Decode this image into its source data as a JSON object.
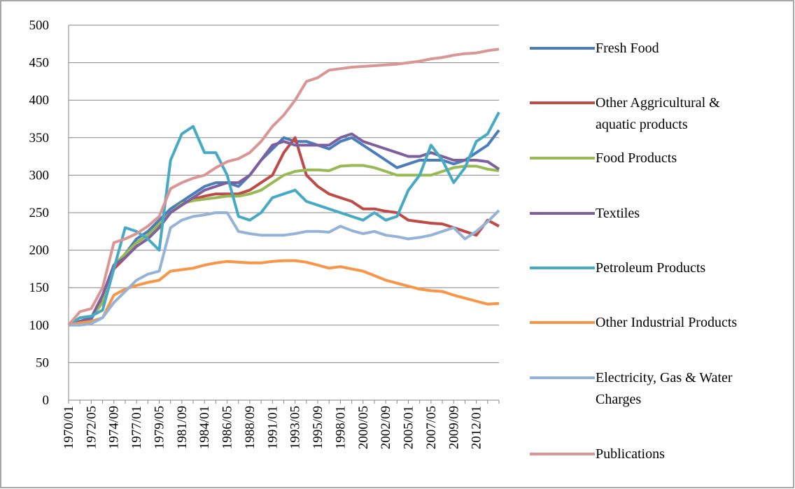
{
  "chart_data": {
    "type": "line",
    "categories": [
      "1970/01",
      null,
      "1972/05",
      null,
      "1974/09",
      null,
      "1977/01",
      null,
      "1979/05",
      null,
      "1981/09",
      null,
      "1984/01",
      null,
      "1986/05",
      null,
      "1988/09",
      null,
      "1991/01",
      null,
      "1993/05",
      null,
      "1995/09",
      null,
      "1998/01",
      null,
      "2000/05",
      null,
      "2002/09",
      null,
      "2005/01",
      null,
      "2007/05",
      null,
      "2009/09",
      null,
      "2012/01",
      null,
      null
    ],
    "ylim": [
      0,
      500
    ],
    "yticks": [
      0,
      50,
      100,
      150,
      200,
      250,
      300,
      350,
      400,
      450,
      500
    ],
    "grid": true,
    "series": [
      {
        "name": "Fresh Food",
        "color": "#4a7ebb",
        "values": [
          100,
          102,
          108,
          135,
          175,
          195,
          215,
          225,
          240,
          255,
          265,
          275,
          285,
          290,
          290,
          285,
          300,
          320,
          335,
          350,
          345,
          345,
          340,
          335,
          345,
          350,
          340,
          330,
          320,
          310,
          315,
          320,
          320,
          320,
          315,
          320,
          330,
          340,
          360
        ]
      },
      {
        "name": "Other Aggricultural &  aquatic products",
        "color": "#be4b48",
        "values": [
          100,
          105,
          110,
          135,
          175,
          190,
          210,
          220,
          235,
          250,
          262,
          268,
          272,
          275,
          275,
          275,
          280,
          290,
          300,
          330,
          350,
          300,
          285,
          275,
          270,
          265,
          255,
          255,
          252,
          250,
          240,
          238,
          236,
          235,
          230,
          225,
          220,
          240,
          232
        ]
      },
      {
        "name": "Food Products",
        "color": "#98b954",
        "values": [
          100,
          105,
          110,
          130,
          180,
          195,
          210,
          220,
          235,
          250,
          262,
          266,
          268,
          270,
          272,
          272,
          275,
          280,
          290,
          300,
          305,
          307,
          307,
          306,
          312,
          313,
          313,
          310,
          305,
          300,
          300,
          300,
          300,
          305,
          310,
          312,
          312,
          308,
          306
        ]
      },
      {
        "name": "Textiles",
        "color": "#7d60a0",
        "values": [
          100,
          105,
          110,
          140,
          180,
          190,
          205,
          215,
          230,
          250,
          260,
          270,
          280,
          285,
          290,
          290,
          300,
          320,
          340,
          345,
          340,
          340,
          340,
          340,
          350,
          355,
          345,
          340,
          335,
          330,
          325,
          325,
          330,
          325,
          320,
          320,
          320,
          318,
          308
        ]
      },
      {
        "name": "Petroleum Products",
        "color": "#46aac5",
        "values": [
          100,
          110,
          112,
          120,
          175,
          230,
          225,
          215,
          200,
          320,
          355,
          365,
          330,
          330,
          300,
          245,
          240,
          250,
          270,
          275,
          280,
          265,
          260,
          255,
          250,
          245,
          240,
          250,
          240,
          245,
          280,
          300,
          340,
          320,
          290,
          310,
          345,
          355,
          384
        ]
      },
      {
        "name": "Other Industrial Products",
        "color": "#f79646",
        "values": [
          100,
          103,
          105,
          110,
          140,
          148,
          153,
          157,
          160,
          172,
          174,
          176,
          180,
          183,
          185,
          184,
          183,
          183,
          185,
          186,
          186,
          184,
          180,
          176,
          178,
          175,
          172,
          166,
          160,
          156,
          152,
          148,
          146,
          145,
          140,
          136,
          132,
          128,
          129
        ]
      },
      {
        "name": "Electricity, Gas & Water Charges",
        "color": "#95b3d7",
        "values": [
          100,
          100,
          102,
          110,
          130,
          145,
          160,
          168,
          172,
          230,
          240,
          245,
          247,
          250,
          250,
          225,
          222,
          220,
          220,
          220,
          222,
          225,
          225,
          224,
          232,
          226,
          222,
          225,
          220,
          218,
          215,
          217,
          220,
          225,
          230,
          215,
          225,
          238,
          253
        ]
      },
      {
        "name": "Publications",
        "color": "#d99694",
        "values": [
          100,
          118,
          122,
          150,
          210,
          215,
          222,
          232,
          245,
          282,
          290,
          296,
          300,
          310,
          318,
          322,
          330,
          345,
          365,
          380,
          400,
          425,
          430,
          440,
          442,
          444,
          445,
          446,
          447,
          448,
          450,
          452,
          455,
          457,
          460,
          462,
          463,
          466,
          468
        ]
      }
    ]
  }
}
